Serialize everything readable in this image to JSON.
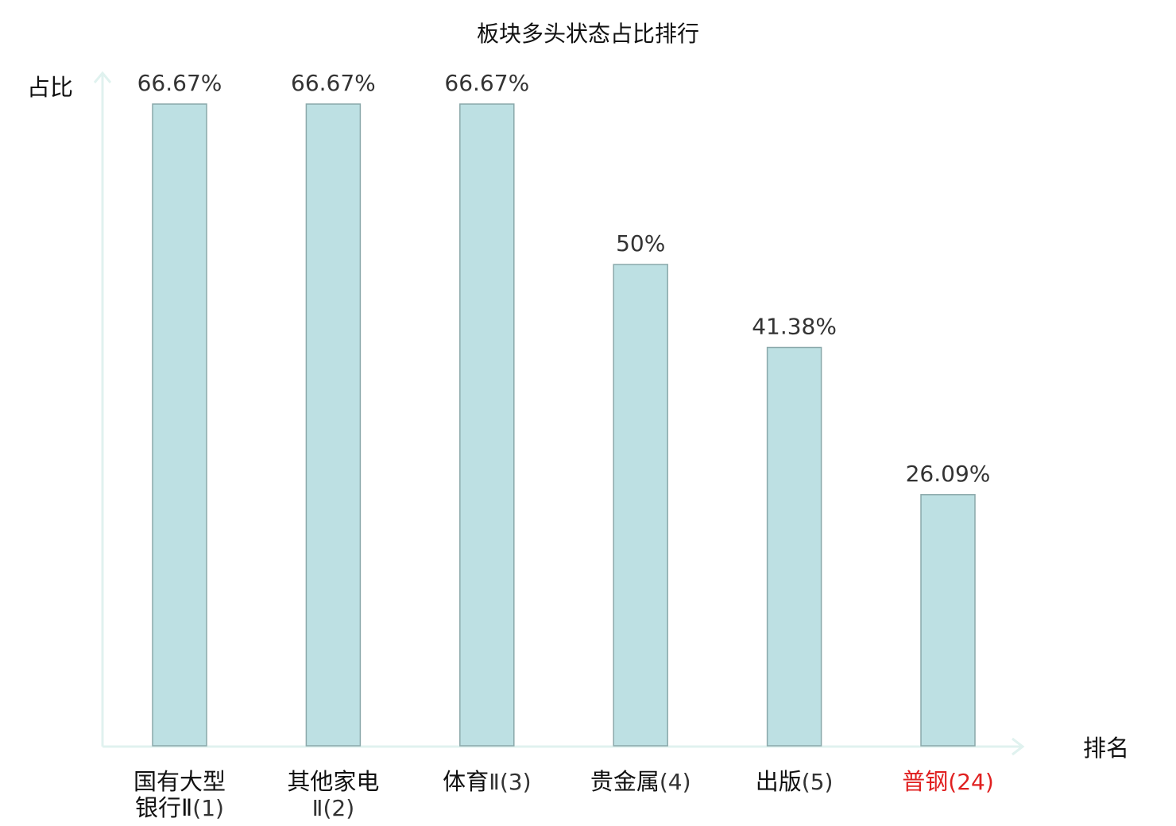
{
  "chart_data": {
    "type": "bar",
    "title": "板块多头状态占比排行",
    "ylabel": "占比",
    "xlabel": "排名",
    "ylim": [
      0,
      66.67
    ],
    "grid": false,
    "categories": [
      {
        "lines": [
          [
            {
              "t": "国有大型",
              "s": "cn"
            }
          ],
          [
            {
              "t": "银行Ⅱ",
              "s": "cn"
            },
            {
              "t": "(1)",
              "s": "num"
            }
          ]
        ]
      },
      {
        "lines": [
          [
            {
              "t": "其他家电",
              "s": "cn"
            }
          ],
          [
            {
              "t": "Ⅱ(2)",
              "s": "num"
            }
          ]
        ]
      },
      {
        "lines": [
          [
            {
              "t": "体育",
              "s": "cn"
            },
            {
              "t": "Ⅱ(3)",
              "s": "num"
            }
          ]
        ]
      },
      {
        "lines": [
          [
            {
              "t": "贵金属",
              "s": "cn"
            },
            {
              "t": "(4)",
              "s": "num"
            }
          ]
        ]
      },
      {
        "lines": [
          [
            {
              "t": "出版",
              "s": "cn"
            },
            {
              "t": "(5)",
              "s": "num"
            }
          ]
        ]
      },
      {
        "lines": [
          [
            {
              "t": "普钢",
              "s": "cn"
            },
            {
              "t": "(24)",
              "s": "num"
            }
          ]
        ],
        "highlight": true
      }
    ],
    "values": [
      66.67,
      66.67,
      66.67,
      50,
      41.38,
      26.09
    ],
    "value_labels": [
      "66.67%",
      "66.67%",
      "66.67%",
      "50%",
      "41.38%",
      "26.09%"
    ],
    "colors": {
      "bar_fill": "#bde0e3",
      "bar_stroke": "#8aa8aa",
      "axis": "#e0f2ef",
      "label": "#111111",
      "num_label": "#333333",
      "highlight": "#e02020"
    }
  }
}
